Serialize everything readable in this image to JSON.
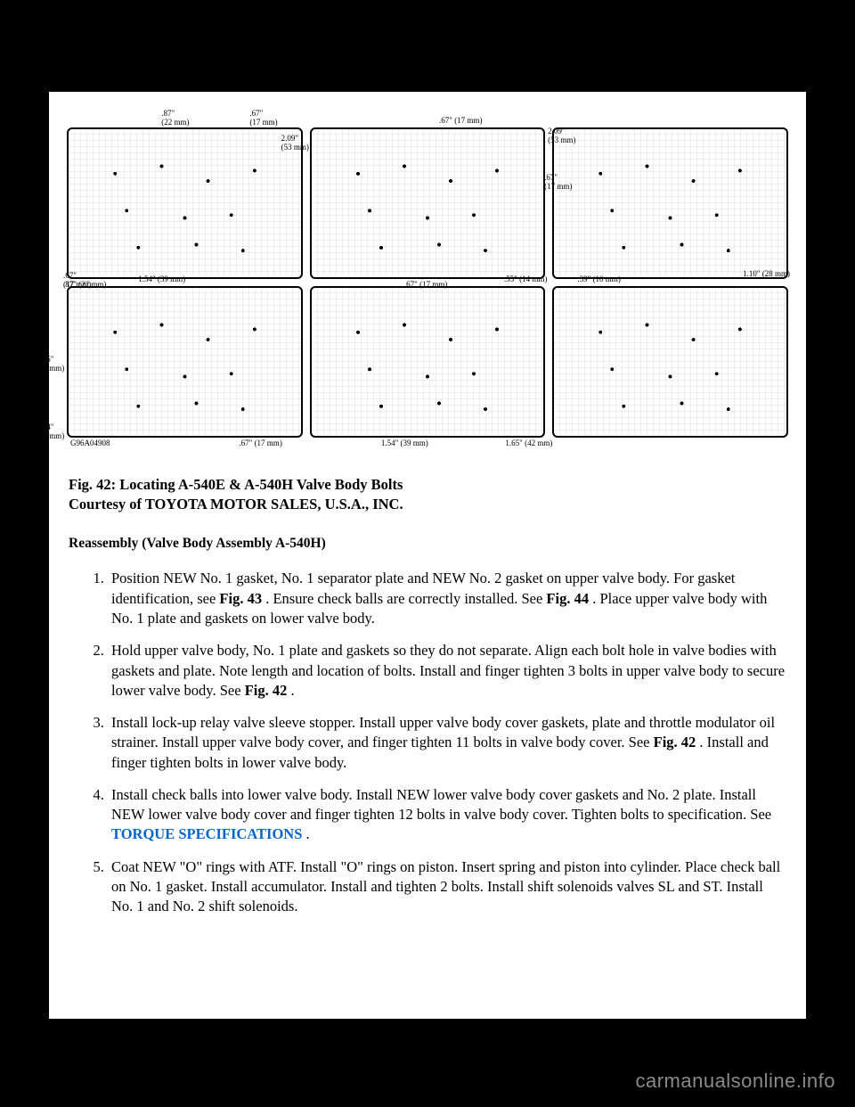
{
  "figure": {
    "gcode": "G96A04908",
    "callouts": {
      "d1_a": ".87\"\n(22 mm)",
      "d1_b": ".67\"\n(17 mm)",
      "d1_c": ".87\" (22 mm)",
      "d2_a": "2.09\"\n(53 mm)",
      "d2_b": ".67\" (17 mm)",
      "d2_c": ".67\" (17 mm)",
      "d2_d": "2.09\"\n(53 mm)",
      "d2_e": ".67\"\n(17 mm)",
      "d3_a": "1.10\" (28 mm)",
      "d4_a": ".67\"\n(17 mm)",
      "d4_b": "1.54\" (39 mm)",
      "d4_c": "1.65\"\n(42 mm)",
      "d4_d": "1.54\"\n(39 mm)",
      "d4_e": ".67\" (17 mm)",
      "d5_a": "1.54\" (39 mm)",
      "d5_b": ".55\" (14 mm)",
      "d5_c": "1.65\" (42 mm)",
      "d6_a": ".39\" (10 mm)"
    }
  },
  "caption": {
    "line1_prefix": "Fig. 42: ",
    "line1_title": "Locating A-540E & A-540H Valve Body Bolts",
    "line2": "Courtesy of TOYOTA MOTOR SALES, U.S.A., INC."
  },
  "subheading": "Reassembly (Valve Body Assembly A-540H)",
  "steps": [
    {
      "pre": "Position NEW No. 1 gasket, No. 1 separator plate and NEW No. 2 gasket on upper valve body. For gasket identification, see ",
      "ref1": "Fig. 43",
      "mid": " . Ensure check balls are correctly installed. See ",
      "ref2": "Fig. 44",
      "post": " . Place upper valve body with No. 1 plate and gaskets on lower valve body."
    },
    {
      "pre": "Hold upper valve body, No. 1 plate and gaskets so they do not separate. Align each bolt hole in valve bodies with gaskets and plate. Note length and location of bolts. Install and finger tighten 3 bolts in upper valve body to secure lower valve body. See ",
      "ref1": "Fig. 42",
      "post": " ."
    },
    {
      "pre": "Install lock-up relay valve sleeve stopper. Install upper valve body cover gaskets, plate and throttle modulator oil strainer. Install upper valve body cover, and finger tighten 11 bolts in valve body cover. See ",
      "ref1": "Fig. 42",
      "post": " . Install and finger tighten bolts in lower valve body."
    },
    {
      "pre": "Install check balls into lower valve body. Install NEW lower valve body cover gaskets and No. 2 plate. Install NEW lower valve body cover and finger tighten 12 bolts in valve body cover. Tighten bolts to specification. See ",
      "link": "TORQUE SPECIFICATIONS",
      "post": " ."
    },
    {
      "pre": "Coat NEW \"O\" rings with ATF. Install \"O\" rings on piston. Insert spring and piston into cylinder. Place check ball on No. 1 gasket. Install accumulator. Install and tighten 2 bolts. Install shift solenoids valves SL and ST. Install No. 1 and No. 2 shift solenoids."
    }
  ],
  "footer": "carmanualsonline.info"
}
